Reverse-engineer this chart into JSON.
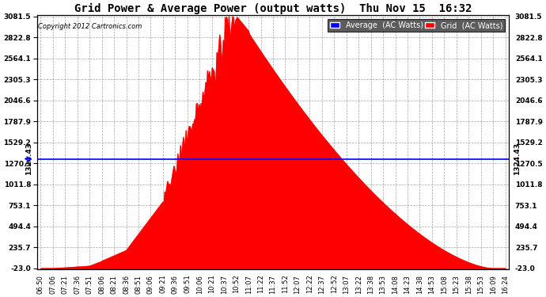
{
  "title": "Grid Power & Average Power (output watts)  Thu Nov 15  16:32",
  "copyright": "Copyright 2012 Cartronics.com",
  "ymin": -23.0,
  "ymax": 3081.5,
  "yticks": [
    3081.5,
    2822.8,
    2564.1,
    2305.3,
    2046.6,
    1787.9,
    1529.2,
    1270.5,
    1011.8,
    753.1,
    494.4,
    235.7,
    -23.0
  ],
  "average_line": 1324.43,
  "average_label": "1324.43",
  "grid_color": "#FF0000",
  "avg_color": "#0000FF",
  "background_color": "#FFFFFF",
  "plot_bg_color": "#FFFFFF",
  "legend_avg_label": "Average  (AC Watts)",
  "legend_grid_label": "Grid  (AC Watts)",
  "xtick_labels": [
    "06:50",
    "07:06",
    "07:21",
    "07:36",
    "07:51",
    "08:06",
    "08:21",
    "08:36",
    "08:51",
    "09:06",
    "09:21",
    "09:36",
    "09:51",
    "10:06",
    "10:21",
    "10:37",
    "10:52",
    "11:07",
    "11:22",
    "11:37",
    "11:52",
    "12:07",
    "12:22",
    "12:37",
    "12:52",
    "13:07",
    "13:22",
    "13:38",
    "13:53",
    "14:08",
    "14:23",
    "14:38",
    "14:53",
    "15:08",
    "15:23",
    "15:38",
    "15:53",
    "16:09",
    "16:24"
  ]
}
